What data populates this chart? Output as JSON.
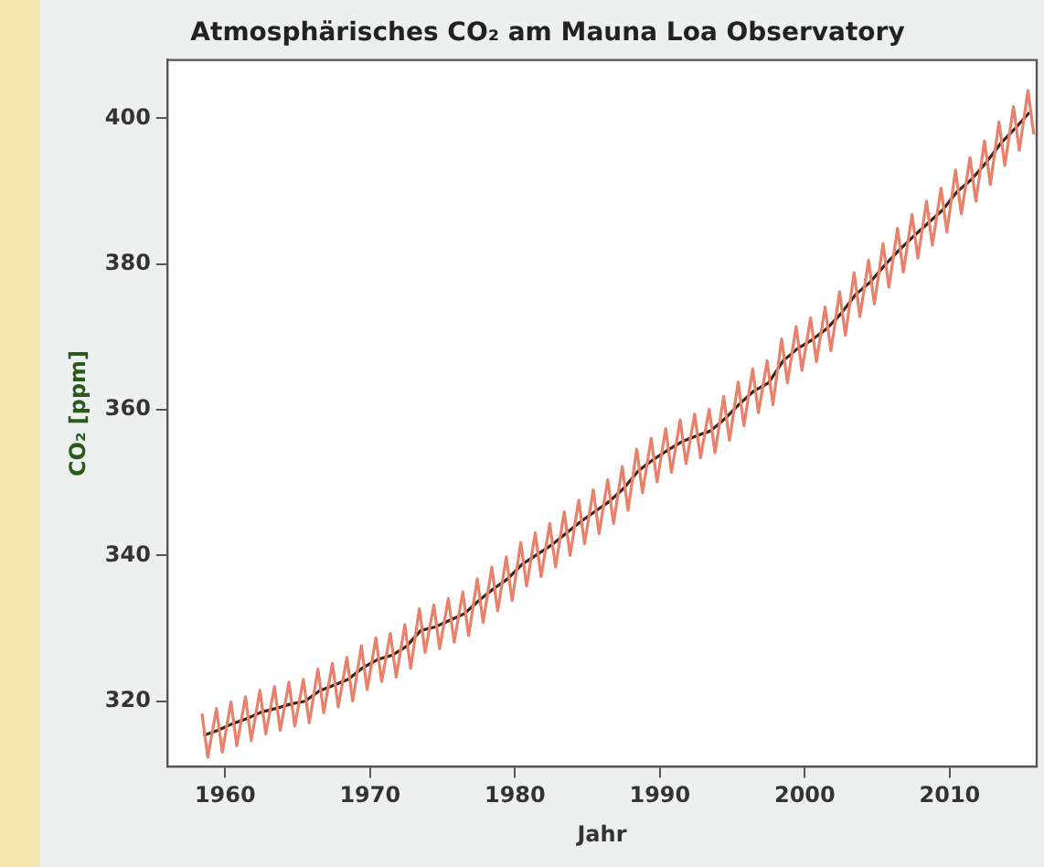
{
  "chart_data": {
    "type": "line",
    "title": "Atmosphärisches CO₂ am Mauna Loa Observatory",
    "xlabel": "Jahr",
    "ylabel": "CO₂ [ppm]",
    "xlim": [
      1956,
      2016
    ],
    "xticks": [
      1960,
      1970,
      1980,
      1990,
      2000,
      2010
    ],
    "ylim": [
      311,
      408
    ],
    "yticks": [
      320,
      340,
      360,
      380,
      400
    ],
    "grid": false,
    "legend": false,
    "marker": "none",
    "line_style": "solid",
    "series": [
      {
        "color": "#e8806a",
        "x": [
          1958.4,
          1958.8,
          1959.4,
          1959.8,
          1960.4,
          1960.8,
          1961.4,
          1961.8,
          1962.4,
          1962.8,
          1963.4,
          1963.8,
          1964.4,
          1964.8,
          1965.4,
          1965.8,
          1966.4,
          1966.8,
          1967.4,
          1967.8,
          1968.4,
          1968.8,
          1969.4,
          1969.8,
          1970.4,
          1970.8,
          1971.4,
          1971.8,
          1972.4,
          1972.8,
          1973.4,
          1973.8,
          1974.4,
          1974.8,
          1975.4,
          1975.8,
          1976.4,
          1976.8,
          1977.4,
          1977.8,
          1978.4,
          1978.8,
          1979.4,
          1979.8,
          1980.4,
          1980.8,
          1981.4,
          1981.8,
          1982.4,
          1982.8,
          1983.4,
          1983.8,
          1984.4,
          1984.8,
          1985.4,
          1985.8,
          1986.4,
          1986.8,
          1987.4,
          1987.8,
          1988.4,
          1988.8,
          1989.4,
          1989.8,
          1990.4,
          1990.8,
          1991.4,
          1991.8,
          1992.4,
          1992.8,
          1993.4,
          1993.8,
          1994.4,
          1994.8,
          1995.4,
          1995.8,
          1996.4,
          1996.8,
          1997.4,
          1997.8,
          1998.4,
          1998.8,
          1999.4,
          1999.8,
          2000.4,
          2000.8,
          2001.4,
          2001.8,
          2002.4,
          2002.8,
          2003.4,
          2003.8,
          2004.4,
          2004.8,
          2005.4,
          2005.8,
          2006.4,
          2006.8,
          2007.4,
          2007.8,
          2008.4,
          2008.8,
          2009.4,
          2009.8,
          2010.4,
          2010.8,
          2011.4,
          2011.8,
          2012.4,
          2012.8,
          2013.4,
          2013.8,
          2014.4,
          2014.8,
          2015.4,
          2015.8
        ],
        "values": [
          318.3,
          312.3,
          319.0,
          313.0,
          319.9,
          313.9,
          320.6,
          314.6,
          321.5,
          315.5,
          322.0,
          316.0,
          322.6,
          316.6,
          323.0,
          317.0,
          324.4,
          318.4,
          325.2,
          319.2,
          326.0,
          320.0,
          327.6,
          321.6,
          328.7,
          322.7,
          329.3,
          323.3,
          330.5,
          324.5,
          332.7,
          326.7,
          333.2,
          327.2,
          334.1,
          328.1,
          335.0,
          329.0,
          336.8,
          330.8,
          338.4,
          332.4,
          339.8,
          333.8,
          341.8,
          335.8,
          343.1,
          337.1,
          344.4,
          338.4,
          346.0,
          340.0,
          347.6,
          341.6,
          349.0,
          343.0,
          350.4,
          344.4,
          352.2,
          346.2,
          354.6,
          348.6,
          356.1,
          350.1,
          357.4,
          351.4,
          358.6,
          352.6,
          359.4,
          353.4,
          360.1,
          354.1,
          361.8,
          355.8,
          363.8,
          357.8,
          365.6,
          359.6,
          366.7,
          360.7,
          369.7,
          363.7,
          371.4,
          365.4,
          372.6,
          366.6,
          374.1,
          368.1,
          376.2,
          370.2,
          378.8,
          372.8,
          380.5,
          374.5,
          382.8,
          376.8,
          384.9,
          378.9,
          386.8,
          380.8,
          388.6,
          382.6,
          390.4,
          384.4,
          392.9,
          386.9,
          394.6,
          388.6,
          396.9,
          390.9,
          399.5,
          393.5,
          401.6,
          395.6,
          403.8,
          397.8
        ]
      },
      {
        "color": "#3a2418",
        "x": [
          1958.5,
          1959.5,
          1960.5,
          1961.5,
          1962.5,
          1963.5,
          1964.5,
          1965.5,
          1966.5,
          1967.5,
          1968.5,
          1969.5,
          1970.5,
          1971.5,
          1972.5,
          1973.5,
          1974.5,
          1975.5,
          1976.5,
          1977.5,
          1978.5,
          1979.5,
          1980.5,
          1981.5,
          1982.5,
          1983.5,
          1984.5,
          1985.5,
          1986.5,
          1987.5,
          1988.5,
          1989.5,
          1990.5,
          1991.5,
          1992.5,
          1993.5,
          1994.5,
          1995.5,
          1996.5,
          1997.5,
          1998.5,
          1999.5,
          2000.5,
          2001.5,
          2002.5,
          2003.5,
          2004.5,
          2005.5,
          2006.5,
          2007.5,
          2008.5,
          2009.5,
          2010.5,
          2011.5,
          2012.5,
          2013.5,
          2014.5,
          2015.5
        ],
        "values": [
          315.3,
          316.0,
          316.9,
          317.6,
          318.5,
          319.0,
          319.6,
          320.0,
          321.4,
          322.2,
          323.0,
          324.6,
          325.7,
          326.3,
          327.5,
          329.7,
          330.2,
          331.1,
          332.0,
          333.8,
          335.4,
          336.8,
          338.8,
          340.1,
          341.4,
          343.0,
          344.6,
          346.0,
          347.4,
          349.2,
          351.6,
          353.1,
          354.4,
          355.6,
          356.4,
          357.1,
          358.8,
          360.8,
          362.6,
          363.7,
          366.7,
          368.4,
          369.6,
          371.1,
          373.2,
          375.8,
          377.5,
          379.8,
          381.9,
          383.8,
          385.6,
          387.4,
          389.9,
          391.6,
          393.9,
          396.5,
          398.6,
          400.8
        ]
      }
    ]
  }
}
